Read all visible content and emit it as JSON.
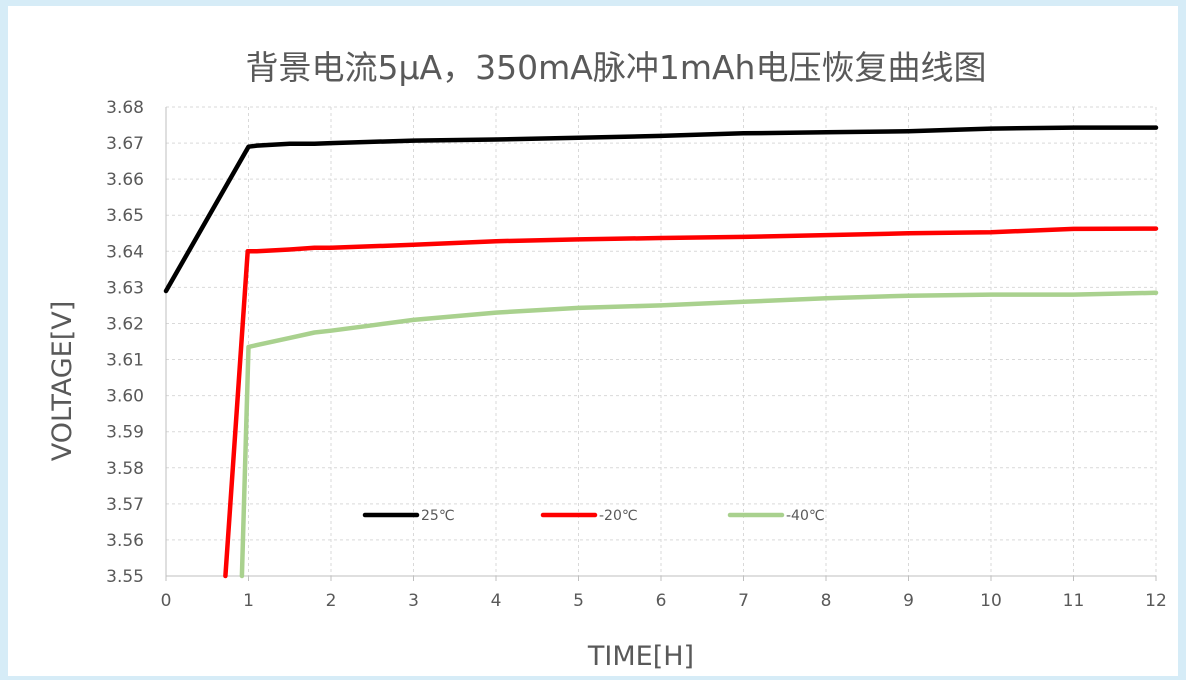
{
  "chart_data": {
    "type": "line",
    "title": "背景电流5μA，350mA脉冲1mAh电压恢复曲线图",
    "xlabel": "TIME[H]",
    "ylabel": "VOLTAGE[V]",
    "xlim": [
      0,
      12
    ],
    "ylim": [
      3.55,
      3.68
    ],
    "x_ticks": [
      "0",
      "1",
      "2",
      "3",
      "4",
      "5",
      "6",
      "7",
      "8",
      "9",
      "10",
      "11",
      "12"
    ],
    "y_ticks": [
      "3.55",
      "3.56",
      "3.57",
      "3.58",
      "3.59",
      "3.60",
      "3.61",
      "3.62",
      "3.63",
      "3.64",
      "3.65",
      "3.66",
      "3.67",
      "3.68"
    ],
    "grid": true,
    "legend_position": "inside-bottom-center",
    "series": [
      {
        "name": "25℃",
        "color": "#000000",
        "points": [
          [
            0,
            3.629
          ],
          [
            1.0,
            3.669
          ],
          [
            1.1,
            3.6693
          ],
          [
            1.5,
            3.6698
          ],
          [
            1.8,
            3.6698
          ],
          [
            2.0,
            3.67
          ],
          [
            3.0,
            3.6707
          ],
          [
            4.0,
            3.671
          ],
          [
            5.0,
            3.6715
          ],
          [
            6.0,
            3.672
          ],
          [
            7.0,
            3.6727
          ],
          [
            8.0,
            3.673
          ],
          [
            9.0,
            3.6733
          ],
          [
            10.0,
            3.674
          ],
          [
            11.0,
            3.6743
          ],
          [
            12.0,
            3.6743
          ]
        ]
      },
      {
        "name": "-20℃",
        "color": "#ff0000",
        "points": [
          [
            0.72,
            3.55
          ],
          [
            0.99,
            3.64
          ],
          [
            1.1,
            3.64
          ],
          [
            1.5,
            3.6405
          ],
          [
            1.8,
            3.641
          ],
          [
            2.0,
            3.641
          ],
          [
            3.0,
            3.6418
          ],
          [
            4.0,
            3.6428
          ],
          [
            5.0,
            3.6433
          ],
          [
            6.0,
            3.6437
          ],
          [
            7.0,
            3.644
          ],
          [
            8.0,
            3.6445
          ],
          [
            9.0,
            3.645
          ],
          [
            10.0,
            3.6453
          ],
          [
            11.0,
            3.6462
          ],
          [
            12.0,
            3.6463
          ]
        ]
      },
      {
        "name": "-40℃",
        "color": "#a9d18e",
        "points": [
          [
            0.92,
            3.55
          ],
          [
            1.0,
            3.6135
          ],
          [
            1.1,
            3.614
          ],
          [
            1.5,
            3.616
          ],
          [
            1.8,
            3.6175
          ],
          [
            2.0,
            3.618
          ],
          [
            2.5,
            3.6195
          ],
          [
            3.0,
            3.621
          ],
          [
            4.0,
            3.623
          ],
          [
            5.0,
            3.6243
          ],
          [
            6.0,
            3.625
          ],
          [
            7.0,
            3.626
          ],
          [
            8.0,
            3.627
          ],
          [
            9.0,
            3.6277
          ],
          [
            10.0,
            3.628
          ],
          [
            11.0,
            3.628
          ],
          [
            12.0,
            3.6285
          ]
        ]
      }
    ]
  }
}
